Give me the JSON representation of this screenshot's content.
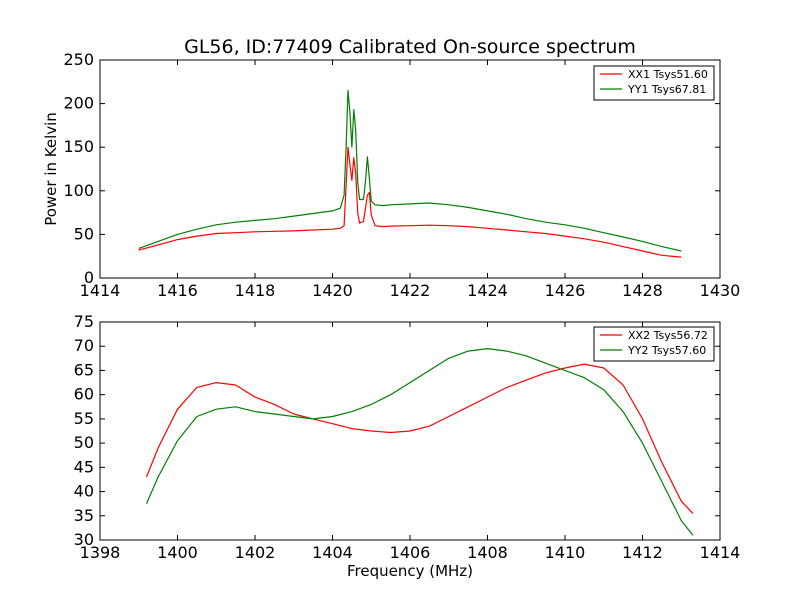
{
  "title": "GL56, ID:77409 Calibrated On-source spectrum",
  "colors": {
    "xx": "#ff0000",
    "yy": "#008000",
    "frame": "#000000",
    "background": "#ffffff"
  },
  "chart_data": [
    {
      "type": "line",
      "title": "GL56, ID:77409 Calibrated On-source spectrum",
      "xlabel": "",
      "ylabel": "Power in Kelvin",
      "xlim": [
        1414,
        1430
      ],
      "ylim": [
        0,
        250
      ],
      "xticks": [
        1414,
        1416,
        1418,
        1420,
        1422,
        1424,
        1426,
        1428,
        1430
      ],
      "yticks": [
        0,
        50,
        100,
        150,
        200,
        250
      ],
      "grid": false,
      "legend_position": "top-right",
      "series": [
        {
          "name": "XX1 Tsys51.60",
          "color": "#ff0000",
          "x": [
            1415.0,
            1415.5,
            1416.0,
            1416.5,
            1417.0,
            1417.5,
            1418.0,
            1418.5,
            1419.0,
            1419.5,
            1420.0,
            1420.2,
            1420.3,
            1420.4,
            1420.45,
            1420.5,
            1420.55,
            1420.6,
            1420.65,
            1420.7,
            1420.8,
            1420.9,
            1420.95,
            1421.0,
            1421.1,
            1421.3,
            1421.5,
            1422.0,
            1422.5,
            1423.0,
            1423.5,
            1424.0,
            1424.5,
            1425.0,
            1425.5,
            1426.0,
            1426.5,
            1427.0,
            1427.5,
            1428.0,
            1428.5,
            1429.0
          ],
          "y": [
            32,
            38,
            44,
            48,
            51,
            52,
            53,
            53.5,
            54,
            55,
            56,
            57,
            60,
            150,
            130,
            112,
            138,
            120,
            75,
            63,
            65,
            95,
            98,
            72,
            60,
            59,
            59.5,
            60,
            60.5,
            60,
            59,
            57,
            55,
            53,
            51,
            48,
            45,
            41,
            36,
            31,
            26,
            24
          ]
        },
        {
          "name": "YY1 Tsys67.81",
          "color": "#008000",
          "x": [
            1415.0,
            1415.5,
            1416.0,
            1416.5,
            1417.0,
            1417.5,
            1418.0,
            1418.5,
            1419.0,
            1419.5,
            1420.0,
            1420.2,
            1420.3,
            1420.35,
            1420.4,
            1420.45,
            1420.5,
            1420.55,
            1420.6,
            1420.65,
            1420.7,
            1420.8,
            1420.85,
            1420.9,
            1420.95,
            1421.0,
            1421.1,
            1421.3,
            1421.5,
            1422.0,
            1422.5,
            1423.0,
            1423.5,
            1424.0,
            1424.5,
            1425.0,
            1425.5,
            1426.0,
            1426.5,
            1427.0,
            1427.5,
            1428.0,
            1428.5,
            1429.0
          ],
          "y": [
            34,
            42,
            50,
            56,
            61,
            64,
            66,
            68,
            71,
            74,
            77,
            80,
            95,
            150,
            215,
            190,
            150,
            193,
            170,
            110,
            90,
            90,
            110,
            139,
            115,
            88,
            84,
            83,
            84,
            85,
            86,
            84,
            81,
            77,
            73,
            68,
            64,
            61,
            57,
            52,
            47,
            42,
            36,
            31
          ]
        }
      ]
    },
    {
      "type": "line",
      "title": "",
      "xlabel": "Frequency (MHz)",
      "ylabel": "",
      "xlim": [
        1398,
        1414
      ],
      "ylim": [
        30,
        75
      ],
      "xticks": [
        1398,
        1400,
        1402,
        1404,
        1406,
        1408,
        1410,
        1412,
        1414
      ],
      "yticks": [
        30,
        35,
        40,
        45,
        50,
        55,
        60,
        65,
        70,
        75
      ],
      "grid": false,
      "legend_position": "top-right",
      "series": [
        {
          "name": "XX2 Tsys56.72",
          "color": "#ff0000",
          "x": [
            1399.2,
            1399.5,
            1400.0,
            1400.5,
            1401.0,
            1401.5,
            1402.0,
            1402.5,
            1403.0,
            1403.5,
            1404.0,
            1404.5,
            1405.0,
            1405.5,
            1406.0,
            1406.5,
            1407.0,
            1407.5,
            1408.0,
            1408.5,
            1409.0,
            1409.5,
            1410.0,
            1410.5,
            1411.0,
            1411.5,
            1412.0,
            1412.5,
            1413.0,
            1413.3
          ],
          "y": [
            43,
            49,
            57,
            61.5,
            62.5,
            62,
            59.5,
            58,
            56,
            55,
            54,
            53,
            52.5,
            52.2,
            52.5,
            53.5,
            55.5,
            57.5,
            59.5,
            61.5,
            63,
            64.5,
            65.5,
            66.3,
            65.5,
            62,
            55,
            46,
            38,
            35.5
          ]
        },
        {
          "name": "YY2 Tsys57.60",
          "color": "#008000",
          "x": [
            1399.2,
            1399.5,
            1400.0,
            1400.5,
            1401.0,
            1401.5,
            1402.0,
            1402.5,
            1403.0,
            1403.5,
            1404.0,
            1404.5,
            1405.0,
            1405.5,
            1406.0,
            1406.5,
            1407.0,
            1407.5,
            1408.0,
            1408.5,
            1409.0,
            1409.5,
            1410.0,
            1410.5,
            1411.0,
            1411.5,
            1412.0,
            1412.5,
            1413.0,
            1413.3
          ],
          "y": [
            37.5,
            43,
            50.5,
            55.5,
            57,
            57.5,
            56.5,
            56,
            55.5,
            55,
            55.5,
            56.5,
            58,
            60,
            62.5,
            65,
            67.5,
            69,
            69.5,
            69,
            68,
            66.5,
            65,
            63.5,
            61,
            56.5,
            50,
            42,
            34,
            31
          ]
        }
      ]
    }
  ]
}
